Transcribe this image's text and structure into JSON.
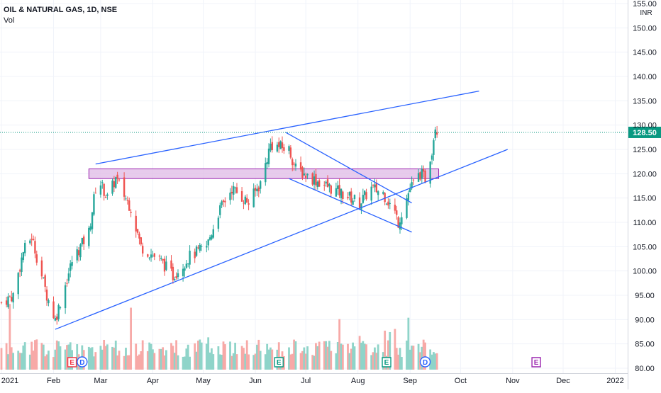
{
  "header": {
    "symbol_line": "OIL & NATURAL GAS, 1D, NSE",
    "volume_label": "Vol"
  },
  "price_axis": {
    "currency": "INR",
    "ticks": [
      "155.00",
      "150.00",
      "145.00",
      "140.00",
      "135.00",
      "130.00",
      "125.00",
      "120.00",
      "115.00",
      "110.00",
      "105.00",
      "100.00",
      "95.00",
      "90.00",
      "85.00",
      "80.00"
    ],
    "last_price_label": "128.50"
  },
  "time_axis": {
    "ticks": [
      "2021",
      "Feb",
      "Mar",
      "Apr",
      "May",
      "Jun",
      "Jul",
      "Aug",
      "Sep",
      "Oct",
      "Nov",
      "Dec",
      "2022"
    ]
  },
  "event_markers": [
    {
      "type": "earnings",
      "label": "E",
      "color": "#f23645",
      "date": "2021-02"
    },
    {
      "type": "dividend",
      "label": "D",
      "color": "#2962ff",
      "date": "2021-02"
    },
    {
      "type": "earnings",
      "label": "E",
      "color": "#089981",
      "date": "2021-06"
    },
    {
      "type": "earnings",
      "label": "E",
      "color": "#089981",
      "date": "2021-08"
    },
    {
      "type": "dividend",
      "label": "D",
      "color": "#2962ff",
      "date": "2021-09"
    },
    {
      "type": "earnings",
      "label": "E",
      "color": "#9c27b0",
      "date": "2021-11"
    }
  ],
  "chart_data": {
    "type": "candlestick",
    "title": "OIL & NATURAL GAS, 1D, NSE",
    "y_unit": "INR",
    "ylim": [
      80,
      155
    ],
    "x_range": [
      "2021-01-01",
      "2022-01-05"
    ],
    "last_price": 128.5,
    "colors": {
      "up": "#26a69a",
      "down": "#ef5350",
      "vol_up": "#8fd4c9",
      "vol_down": "#f7a9a7",
      "trendline": "#2962ff",
      "zone_fill": "#e1bee7",
      "zone_border": "#9c27b0",
      "last_price": "#089981"
    },
    "price_path": [
      {
        "date": "2021-01-01",
        "close": 93.5
      },
      {
        "date": "2021-01-08",
        "close": 95
      },
      {
        "date": "2021-01-14",
        "close": 104
      },
      {
        "date": "2021-01-19",
        "close": 107
      },
      {
        "date": "2021-01-28",
        "close": 95
      },
      {
        "date": "2021-02-02",
        "close": 90
      },
      {
        "date": "2021-02-12",
        "close": 102
      },
      {
        "date": "2021-02-22",
        "close": 108
      },
      {
        "date": "2021-02-26",
        "close": 117
      },
      {
        "date": "2021-03-01",
        "close": 118
      },
      {
        "date": "2021-03-05",
        "close": 115
      },
      {
        "date": "2021-03-10",
        "close": 119
      },
      {
        "date": "2021-03-19",
        "close": 113
      },
      {
        "date": "2021-03-25",
        "close": 105
      },
      {
        "date": "2021-04-06",
        "close": 102
      },
      {
        "date": "2021-04-13",
        "close": 99
      },
      {
        "date": "2021-04-23",
        "close": 103
      },
      {
        "date": "2021-05-03",
        "close": 105
      },
      {
        "date": "2021-05-10",
        "close": 112
      },
      {
        "date": "2021-05-18",
        "close": 117
      },
      {
        "date": "2021-05-28",
        "close": 114
      },
      {
        "date": "2021-06-04",
        "close": 118
      },
      {
        "date": "2021-06-10",
        "close": 126
      },
      {
        "date": "2021-06-21",
        "close": 125
      },
      {
        "date": "2021-06-25",
        "close": 121
      },
      {
        "date": "2021-07-05",
        "close": 119
      },
      {
        "date": "2021-07-16",
        "close": 117
      },
      {
        "date": "2021-07-28",
        "close": 115
      },
      {
        "date": "2021-08-02",
        "close": 114
      },
      {
        "date": "2021-08-09",
        "close": 117
      },
      {
        "date": "2021-08-16",
        "close": 116
      },
      {
        "date": "2021-08-23",
        "close": 112
      },
      {
        "date": "2021-08-25",
        "close": 110
      },
      {
        "date": "2021-09-01",
        "close": 117
      },
      {
        "date": "2021-09-07",
        "close": 120
      },
      {
        "date": "2021-09-10",
        "close": 119
      },
      {
        "date": "2021-09-14",
        "close": 125
      },
      {
        "date": "2021-09-16",
        "close": 130
      },
      {
        "date": "2021-09-18",
        "close": 128.5
      }
    ],
    "drawings": {
      "resistance_zone": {
        "from": "2021-02-22",
        "to": "2021-09-18",
        "low": 119,
        "high": 121
      },
      "trendlines": [
        {
          "name": "rising-resistance",
          "p1": {
            "date": "2021-02-26",
            "price": 122
          },
          "p2": {
            "date": "2021-10-12",
            "price": 137
          }
        },
        {
          "name": "rising-support",
          "p1": {
            "date": "2021-02-02",
            "price": 88
          },
          "p2": {
            "date": "2021-10-29",
            "price": 125
          }
        },
        {
          "name": "falling-channel-top",
          "p1": {
            "date": "2021-06-19",
            "price": 128.5
          },
          "p2": {
            "date": "2021-09-02",
            "price": 114
          }
        },
        {
          "name": "falling-channel-bottom",
          "p1": {
            "date": "2021-06-21",
            "price": 119
          },
          "p2": {
            "date": "2021-09-02",
            "price": 108
          }
        }
      ]
    }
  }
}
